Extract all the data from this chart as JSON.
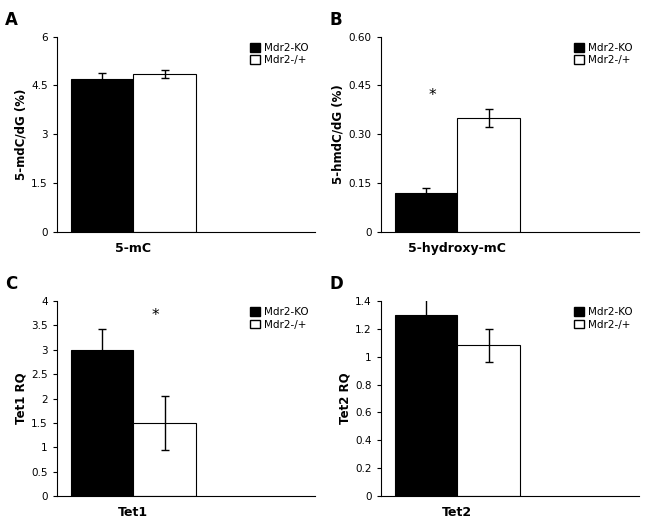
{
  "panel_A": {
    "label": "A",
    "xlabel": "5-mC",
    "ylabel": "5-mdC/dG (%)",
    "ylim": [
      0,
      6
    ],
    "yticks": [
      0,
      1.5,
      3,
      4.5,
      6
    ],
    "ytick_labels": [
      "0",
      "1.5",
      "3",
      "4.5",
      "6"
    ],
    "ko_val": 4.7,
    "ko_err": 0.18,
    "het_val": 4.85,
    "het_err": 0.12,
    "significant": false
  },
  "panel_B": {
    "label": "B",
    "xlabel": "5-hydroxy-mC",
    "ylabel": "5-hmdC/dG (%)",
    "ylim": [
      0,
      0.6
    ],
    "yticks": [
      0,
      0.15,
      0.3,
      0.45,
      0.6
    ],
    "ytick_labels": [
      "0",
      "0.15",
      "0.30",
      "0.45",
      "0.60"
    ],
    "ko_val": 0.12,
    "ko_err": 0.015,
    "het_val": 0.35,
    "het_err": 0.028,
    "significant": true,
    "sig_on_het": true
  },
  "panel_C": {
    "label": "C",
    "xlabel": "Tet1",
    "ylabel": "Tet1 RQ",
    "ylim": [
      0,
      4
    ],
    "yticks": [
      0,
      0.5,
      1.0,
      1.5,
      2.0,
      2.5,
      3.0,
      3.5,
      4.0
    ],
    "ytick_labels": [
      "0",
      "0.5",
      "1",
      "1.5",
      "2",
      "2.5",
      "3",
      "3.5",
      "4"
    ],
    "ko_val": 3.0,
    "ko_err": 0.42,
    "het_val": 1.5,
    "het_err": 0.55,
    "significant": true,
    "sig_on_het": false
  },
  "panel_D": {
    "label": "D",
    "xlabel": "Tet2",
    "ylabel": "Tet2 RQ",
    "ylim": [
      0,
      1.4
    ],
    "yticks": [
      0,
      0.2,
      0.4,
      0.6,
      0.8,
      1.0,
      1.2,
      1.4
    ],
    "ytick_labels": [
      "0",
      "0.2",
      "0.4",
      "0.6",
      "0.8",
      "1",
      "1.2",
      "1.4"
    ],
    "ko_val": 1.3,
    "ko_err": 0.18,
    "het_val": 1.08,
    "het_err": 0.12,
    "significant": false,
    "sig_on_het": false
  },
  "legend_labels": [
    "Mdr2-KO",
    "Mdr2-/+"
  ],
  "bar_colors": [
    "black",
    "white"
  ],
  "bar_edgecolor": "black",
  "bar_width": 0.25,
  "bar_gap": 0.0,
  "sig_marker": "*"
}
